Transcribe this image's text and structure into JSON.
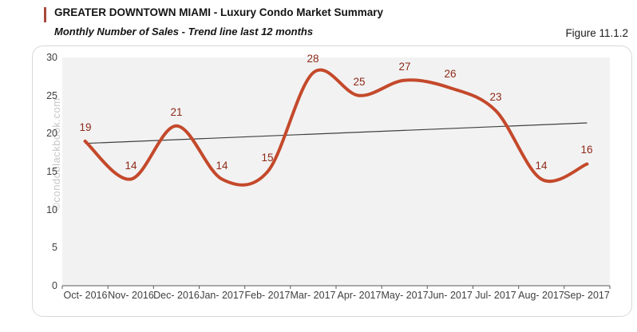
{
  "figure_label": "Figure 11.1.2",
  "watermark": "©condoblackbook.com",
  "chart_data": {
    "type": "line",
    "title": "GREATER DOWNTOWN MIAMI - Luxury Condo Market Summary",
    "subtitle": "Monthly Number of Sales - Trend line last 12 months",
    "categories": [
      "Oct- 2016",
      "Nov- 2016",
      "Dec- 2016",
      "Jan- 2017",
      "Feb- 2017",
      "Mar- 2017",
      "Apr- 2017",
      "May- 2017",
      "Jun- 2017",
      "Jul- 2017",
      "Aug- 2017",
      "Sep- 2017"
    ],
    "series": [
      {
        "name": "Monthly Number of Sales",
        "type": "spline",
        "color": "#c4492b",
        "stroke_width": 4,
        "data_label_color": "#8e2a19",
        "values": [
          19,
          14,
          21,
          14,
          15,
          28,
          25,
          27,
          26,
          23,
          14,
          16
        ]
      },
      {
        "name": "Trend line last 12 months",
        "type": "trend",
        "color": "#404040",
        "stroke_width": 1.2,
        "start_value": 18.7,
        "end_value": 21.4
      }
    ],
    "ylim": [
      0,
      30
    ],
    "yticks": [
      0,
      5,
      10,
      15,
      20,
      25,
      30
    ],
    "grid": false,
    "legend": "none",
    "plot_background": "#f2f2f2",
    "axis_color": "#595959",
    "accent_color": "#a8473a"
  }
}
